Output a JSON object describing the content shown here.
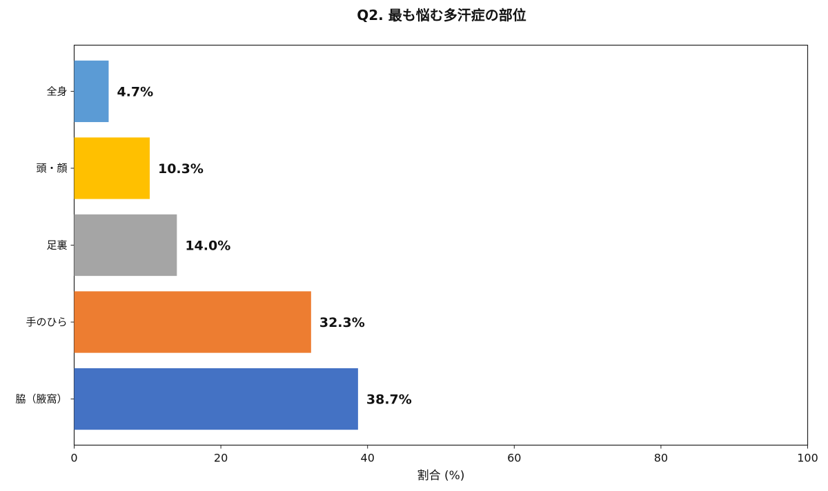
{
  "chart_data": {
    "type": "bar",
    "orientation": "horizontal",
    "title": "Q2. 最も悩む多汗症の部位",
    "xlabel": "割合 (%)",
    "ylabel": "",
    "xlim": [
      0,
      100
    ],
    "xticks": [
      "0",
      "20",
      "40",
      "60",
      "80",
      "100"
    ],
    "categories": [
      "全身",
      "頭・顔",
      "足裏",
      "手のひら",
      "脇（腋窩）"
    ],
    "values": [
      4.7,
      10.3,
      14.0,
      32.3,
      38.7
    ],
    "data_labels": [
      "4.7%",
      "10.3%",
      "14.0%",
      "32.3%",
      "38.7%"
    ],
    "colors": [
      "#5b9bd5",
      "#ffc000",
      "#a5a5a5",
      "#ed7d31",
      "#4472c4"
    ],
    "grid": false,
    "legend": "none"
  }
}
